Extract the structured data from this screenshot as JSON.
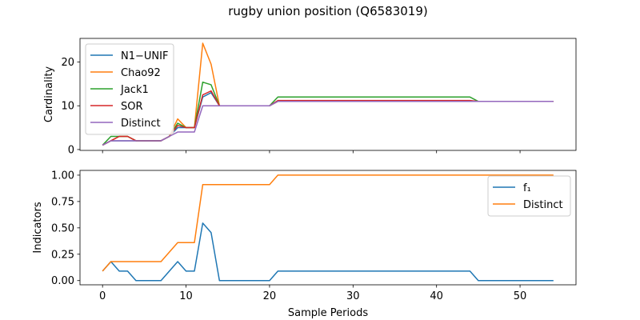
{
  "figure": {
    "title": "rugby union position (Q6583019)"
  },
  "colors": {
    "blue": "#1f77b4",
    "orange": "#ff7f0e",
    "green": "#2ca02c",
    "red": "#d62728",
    "purple": "#9467bd"
  },
  "chart_data": [
    {
      "type": "line",
      "title": "rugby union position (Q6583019)",
      "xlabel": "",
      "ylabel": "Cardinality",
      "xlim": [
        -2.7,
        56.7
      ],
      "ylim": [
        -0.2,
        25.4
      ],
      "x_ticks": [
        0,
        10,
        20,
        30,
        40,
        50
      ],
      "x_tick_labels": [
        "",
        "",
        "",
        "",
        "",
        ""
      ],
      "y_ticks": [
        0,
        10,
        20
      ],
      "y_tick_labels": [
        "0",
        "10",
        "20"
      ],
      "legend_position": "upper left",
      "grid": false,
      "series": [
        {
          "name": "N1−UNIF",
          "color": "#1f77b4",
          "values": [
            1,
            2,
            2,
            2,
            2,
            2,
            2,
            2,
            3,
            5,
            5,
            5,
            12,
            13,
            10,
            10,
            10,
            10,
            10,
            10,
            10,
            11,
            11,
            11,
            11,
            11,
            11,
            11,
            11,
            11,
            11,
            11,
            11,
            11,
            11,
            11,
            11,
            11,
            11,
            11,
            11,
            11,
            11,
            11,
            11,
            11,
            11,
            11,
            11,
            11,
            11,
            11,
            11,
            11,
            11
          ]
        },
        {
          "name": "Chao92",
          "color": "#ff7f0e",
          "values": [
            1,
            2,
            3,
            3,
            2,
            2,
            2,
            2,
            3,
            7,
            5,
            5,
            24.3,
            19.5,
            10,
            10,
            10,
            10,
            10,
            10,
            10,
            11,
            11,
            11,
            11,
            11,
            11,
            11,
            11,
            11,
            11,
            11,
            11,
            11,
            11,
            11,
            11,
            11,
            11,
            11,
            11,
            11,
            11,
            11,
            11,
            11,
            11,
            11,
            11,
            11,
            11,
            11,
            11,
            11,
            11
          ]
        },
        {
          "name": "Jack1",
          "color": "#2ca02c",
          "values": [
            1,
            3,
            3,
            3,
            2,
            2,
            2,
            2,
            3,
            6,
            5,
            5,
            15.4,
            14.8,
            10,
            10,
            10,
            10,
            10,
            10,
            10,
            12,
            12,
            12,
            12,
            12,
            12,
            12,
            12,
            12,
            12,
            12,
            12,
            12,
            12,
            12,
            12,
            12,
            12,
            12,
            12,
            12,
            12,
            12,
            12,
            11,
            11,
            11,
            11,
            11,
            11,
            11,
            11,
            11,
            11
          ]
        },
        {
          "name": "SOR",
          "color": "#d62728",
          "values": [
            1,
            2,
            3,
            3,
            2,
            2,
            2,
            2,
            3,
            5.5,
            5,
            5,
            12.5,
            13.4,
            10,
            10,
            10,
            10,
            10,
            10,
            10,
            11.2,
            11.2,
            11.2,
            11.2,
            11.2,
            11.2,
            11.2,
            11.2,
            11.2,
            11.2,
            11.2,
            11.2,
            11.2,
            11.2,
            11.2,
            11.2,
            11.2,
            11.2,
            11.2,
            11.2,
            11.2,
            11.2,
            11.2,
            11.2,
            11,
            11,
            11,
            11,
            11,
            11,
            11,
            11,
            11,
            11
          ]
        },
        {
          "name": "Distinct",
          "color": "#9467bd",
          "values": [
            1,
            2,
            2,
            2,
            2,
            2,
            2,
            2,
            3,
            4,
            4,
            4,
            10,
            10,
            10,
            10,
            10,
            10,
            10,
            10,
            10,
            11,
            11,
            11,
            11,
            11,
            11,
            11,
            11,
            11,
            11,
            11,
            11,
            11,
            11,
            11,
            11,
            11,
            11,
            11,
            11,
            11,
            11,
            11,
            11,
            11,
            11,
            11,
            11,
            11,
            11,
            11,
            11,
            11,
            11
          ]
        }
      ]
    },
    {
      "type": "line",
      "xlabel": "Sample Periods",
      "ylabel": "Indicators",
      "xlim": [
        -2.7,
        56.7
      ],
      "ylim": [
        -0.04,
        1.045
      ],
      "x_ticks": [
        0,
        10,
        20,
        30,
        40,
        50
      ],
      "x_tick_labels": [
        "0",
        "10",
        "20",
        "30",
        "40",
        "50"
      ],
      "y_ticks": [
        0.0,
        0.25,
        0.5,
        0.75,
        1.0
      ],
      "y_tick_labels": [
        "0.00",
        "0.25",
        "0.50",
        "0.75",
        "1.00"
      ],
      "legend_position": "upper right",
      "grid": false,
      "series": [
        {
          "name": "f₁",
          "color": "#1f77b4",
          "values": [
            0.09,
            0.18,
            0.09,
            0.09,
            0,
            0,
            0,
            0,
            0.09,
            0.18,
            0.09,
            0.09,
            0.545,
            0.455,
            0,
            0,
            0,
            0,
            0,
            0,
            0,
            0.09,
            0.09,
            0.09,
            0.09,
            0.09,
            0.09,
            0.09,
            0.09,
            0.09,
            0.09,
            0.09,
            0.09,
            0.09,
            0.09,
            0.09,
            0.09,
            0.09,
            0.09,
            0.09,
            0.09,
            0.09,
            0.09,
            0.09,
            0.09,
            0,
            0,
            0,
            0,
            0,
            0,
            0,
            0,
            0,
            0
          ]
        },
        {
          "name": "Distinct",
          "color": "#ff7f0e",
          "values": [
            0.09,
            0.18,
            0.18,
            0.18,
            0.18,
            0.18,
            0.18,
            0.18,
            0.27,
            0.36,
            0.36,
            0.36,
            0.91,
            0.91,
            0.91,
            0.91,
            0.91,
            0.91,
            0.91,
            0.91,
            0.91,
            1,
            1,
            1,
            1,
            1,
            1,
            1,
            1,
            1,
            1,
            1,
            1,
            1,
            1,
            1,
            1,
            1,
            1,
            1,
            1,
            1,
            1,
            1,
            1,
            1,
            1,
            1,
            1,
            1,
            1,
            1,
            1,
            1,
            1
          ]
        }
      ]
    }
  ]
}
